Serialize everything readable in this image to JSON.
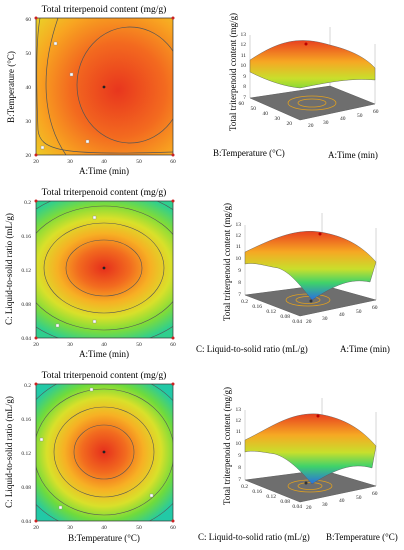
{
  "chart_data": [
    {
      "type": "contour",
      "title": "Total triterpenoid content (mg/g)",
      "xlabel": "A:Time (min)",
      "ylabel": "B:Temperature (°C)",
      "xlim": [
        20,
        60
      ],
      "ylim": [
        20,
        60
      ],
      "xticks": [
        "20",
        "30",
        "40",
        "50",
        "60"
      ],
      "yticks": [
        "20",
        "30",
        "40",
        "50",
        "60"
      ],
      "optimum": [
        40,
        40
      ],
      "contours": [
        {
          "label": "9",
          "rx": 15.6,
          "ry": 27.6
        },
        {
          "label": "10",
          "rx": 8.2,
          "ry": 14.2
        },
        {
          "label": "11",
          "rx": 0,
          "ry": 0
        }
      ],
      "labels_shown": [
        "8",
        "9",
        "10"
      ],
      "surface_3d": {
        "zlabel": "Total triterpenoid content (mg/g)",
        "zticks": [
          "7",
          "8",
          "9",
          "10",
          "11",
          "12",
          "13"
        ],
        "x_axis_label": "A:Time (min)",
        "y_axis_label": "B:Temperature (°C)",
        "xticks": [
          "20",
          "30",
          "40",
          "50",
          "60"
        ],
        "yticks": [
          "20",
          "30",
          "40",
          "50",
          "60"
        ]
      }
    },
    {
      "type": "contour",
      "title": "Total triterpenoid content (mg/g)",
      "xlabel": "A:Time (min)",
      "ylabel": "C: Liquid-to-solid ratio (mL/g)",
      "xlim": [
        20,
        60
      ],
      "ylim": [
        0.04,
        0.2
      ],
      "xticks": [
        "20",
        "30",
        "40",
        "50",
        "60"
      ],
      "yticks": [
        "0.04",
        "0.08",
        "0.12",
        "0.16",
        "0.2"
      ],
      "optimum": [
        40,
        0.12
      ],
      "labels_shown": [
        "8",
        "9",
        "10",
        "11",
        "12"
      ],
      "surface_3d": {
        "zlabel": "Total triterpenoid content (mg/g)",
        "zticks": [
          "7",
          "8",
          "9",
          "10",
          "11",
          "12",
          "13"
        ],
        "x_axis_label": "A:Time (min)",
        "y_axis_label": "C: Liquid-to-solid ratio (mL/g)",
        "xticks": [
          "20",
          "30",
          "40",
          "50",
          "60"
        ],
        "yticks": [
          "0.04",
          "0.08",
          "0.12",
          "0.16",
          "0.2"
        ]
      }
    },
    {
      "type": "contour",
      "title": "Total triterpenoid content (mg/g)",
      "xlabel": "B:Temperature (°C)",
      "ylabel": "C: Liquid-to-solid ratio (mL/g)",
      "xlim": [
        20,
        60
      ],
      "ylim": [
        0.04,
        0.2
      ],
      "xticks": [
        "20",
        "30",
        "40",
        "50",
        "60"
      ],
      "yticks": [
        "0.04",
        "0.08",
        "0.12",
        "0.16",
        "0.2"
      ],
      "optimum": [
        40,
        0.12
      ],
      "labels_shown": [
        "8",
        "9",
        "10",
        "11",
        "12"
      ],
      "surface_3d": {
        "zlabel": "Total triterpenoid content (mg/g)",
        "zticks": [
          "7",
          "8",
          "9",
          "10",
          "11",
          "12",
          "13"
        ],
        "x_axis_label": "B:Temperature (°C)",
        "y_axis_label": "C: Liquid-to-solid ratio (mL/g)",
        "xticks": [
          "20",
          "30",
          "40",
          "50",
          "60"
        ],
        "yticks": [
          "0.04",
          "0.08",
          "0.12",
          "0.16",
          "0.2"
        ]
      }
    }
  ]
}
